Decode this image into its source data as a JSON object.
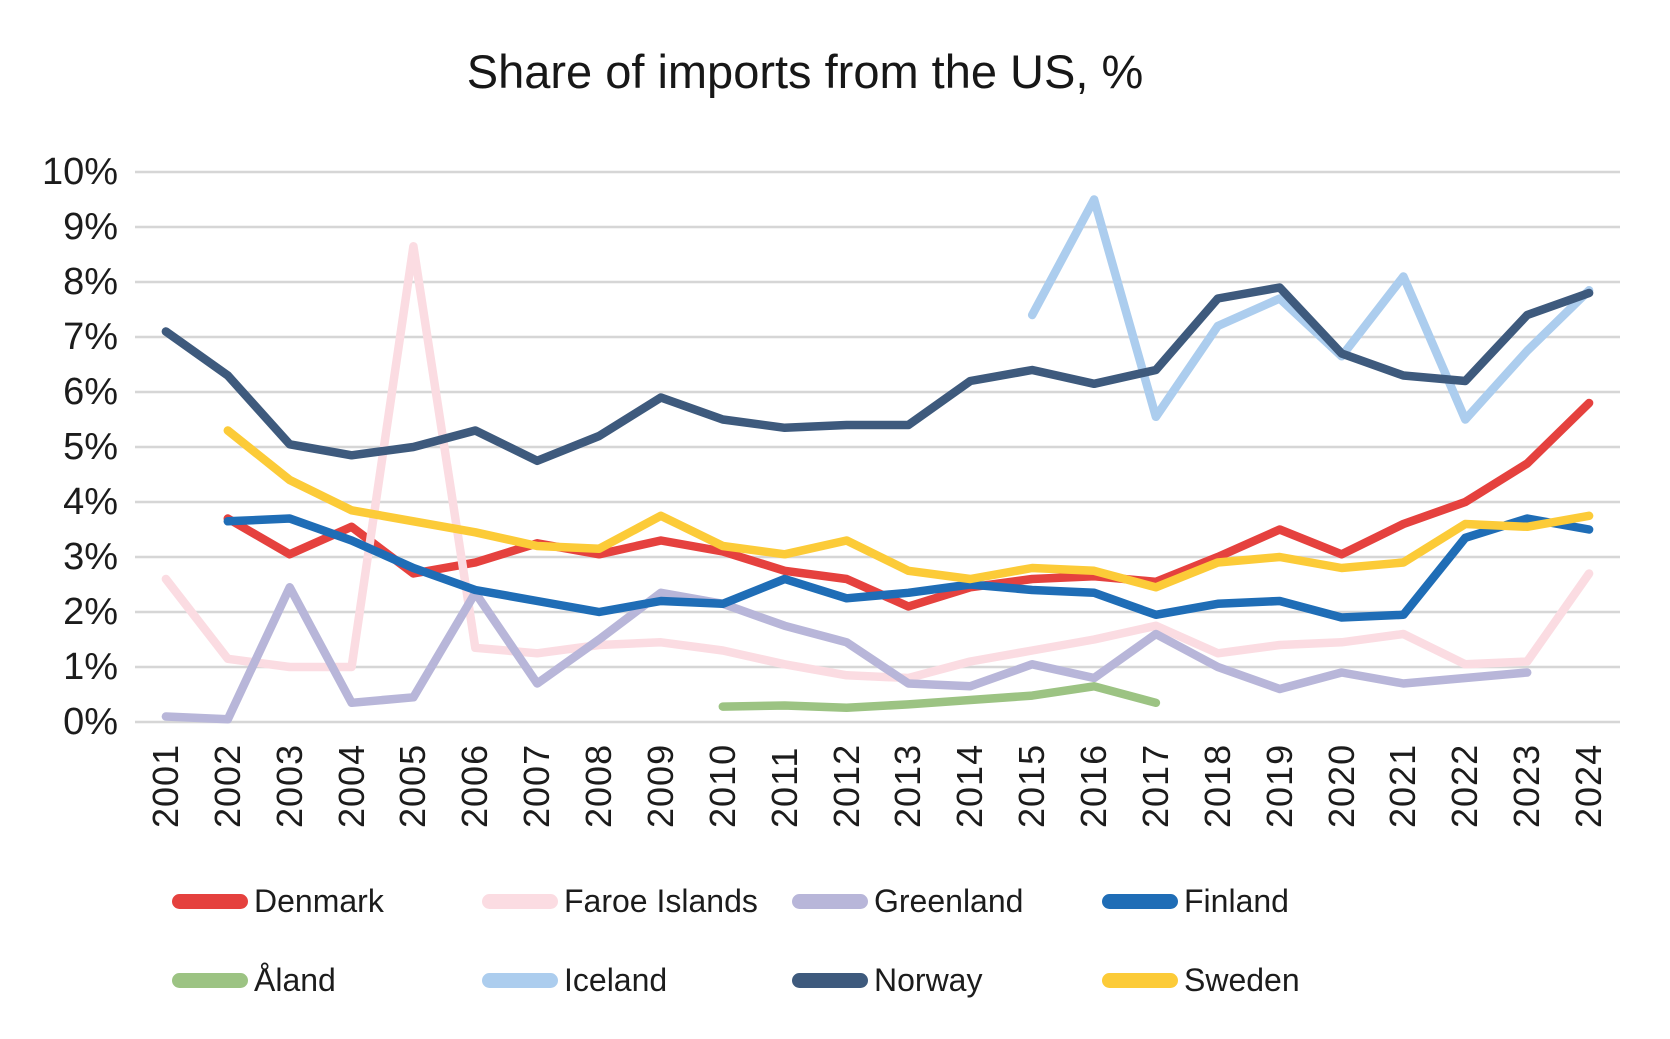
{
  "title": "Share of imports from the US, %",
  "chart_data": {
    "type": "line",
    "x": [
      2001,
      2002,
      2003,
      2004,
      2005,
      2006,
      2007,
      2008,
      2009,
      2010,
      2011,
      2012,
      2013,
      2014,
      2015,
      2016,
      2017,
      2018,
      2019,
      2020,
      2021,
      2022,
      2023,
      2024
    ],
    "series": [
      {
        "name": "Denmark",
        "color": "#e5413e",
        "values": [
          null,
          3.7,
          3.05,
          3.55,
          2.7,
          2.9,
          3.25,
          3.05,
          3.3,
          3.1,
          2.75,
          2.6,
          2.1,
          2.45,
          2.6,
          2.65,
          2.55,
          3.0,
          3.5,
          3.05,
          3.6,
          4.0,
          4.7,
          5.8
        ]
      },
      {
        "name": "Faroe Islands",
        "color": "#fbdce2",
        "values": [
          2.6,
          1.15,
          1.0,
          1.0,
          8.65,
          1.35,
          1.25,
          1.4,
          1.45,
          1.3,
          1.05,
          0.85,
          0.8,
          1.1,
          1.3,
          1.5,
          1.75,
          1.25,
          1.4,
          1.45,
          1.6,
          1.05,
          1.1,
          2.7
        ]
      },
      {
        "name": "Greenland",
        "color": "#b8b6d9",
        "values": [
          0.1,
          0.05,
          2.45,
          0.35,
          0.45,
          2.35,
          0.7,
          1.5,
          2.35,
          2.15,
          1.75,
          1.45,
          0.7,
          0.65,
          1.05,
          0.8,
          1.6,
          1.0,
          0.6,
          0.9,
          0.7,
          0.8,
          0.9,
          null
        ]
      },
      {
        "name": "Finland",
        "color": "#1f6db6",
        "values": [
          null,
          3.65,
          3.7,
          3.3,
          2.8,
          2.4,
          2.2,
          2.0,
          2.2,
          2.15,
          2.6,
          2.25,
          2.35,
          2.5,
          2.4,
          2.35,
          1.95,
          2.15,
          2.2,
          1.9,
          1.95,
          3.35,
          3.7,
          3.5
        ]
      },
      {
        "name": "Åland",
        "color": "#9cc383",
        "values": [
          null,
          null,
          null,
          null,
          null,
          null,
          null,
          null,
          null,
          0.28,
          0.3,
          0.26,
          0.32,
          0.4,
          0.48,
          0.65,
          0.35,
          null,
          null,
          null,
          null,
          null,
          null,
          null
        ]
      },
      {
        "name": "Iceland",
        "color": "#accdee",
        "values": [
          null,
          null,
          null,
          null,
          null,
          null,
          null,
          null,
          null,
          null,
          null,
          null,
          null,
          null,
          7.4,
          9.5,
          5.55,
          7.2,
          7.7,
          6.65,
          8.1,
          5.5,
          6.75,
          7.85
        ]
      },
      {
        "name": "Norway",
        "color": "#3e5a7d",
        "values": [
          7.1,
          6.3,
          5.05,
          4.85,
          5.0,
          5.3,
          4.75,
          5.2,
          5.9,
          5.5,
          5.35,
          5.4,
          5.4,
          6.2,
          6.4,
          6.15,
          6.4,
          7.7,
          7.9,
          6.7,
          6.3,
          6.2,
          7.4,
          7.8
        ]
      },
      {
        "name": "Sweden",
        "color": "#fccb38",
        "values": [
          null,
          5.3,
          4.4,
          3.85,
          3.65,
          3.45,
          3.2,
          3.15,
          3.75,
          3.2,
          3.05,
          3.3,
          2.75,
          2.6,
          2.8,
          2.75,
          2.45,
          2.9,
          3.0,
          2.8,
          2.9,
          3.6,
          3.55,
          3.75
        ]
      }
    ],
    "ylim": [
      0,
      10
    ],
    "y_ticks": [
      0,
      1,
      2,
      3,
      4,
      5,
      6,
      7,
      8,
      9,
      10
    ],
    "y_tick_suffix": "%",
    "xlabel": "",
    "ylabel": "",
    "grid": "horizontal",
    "gridline_color": "#d6d6d6",
    "legend_position": "bottom",
    "legend_rows": [
      [
        "Denmark",
        "Faroe Islands",
        "Greenland",
        "Finland"
      ],
      [
        "Åland",
        "Iceland",
        "Norway",
        "Sweden"
      ]
    ]
  }
}
